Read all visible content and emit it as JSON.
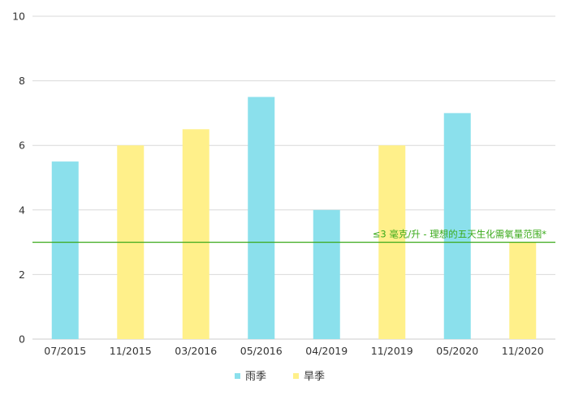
{
  "chart_data": {
    "type": "bar",
    "categories": [
      "07/2015",
      "11/2015",
      "03/2016",
      "05/2016",
      "04/2019",
      "11/2019",
      "05/2020",
      "11/2020"
    ],
    "values": [
      5.5,
      6,
      6.5,
      7.5,
      4,
      6,
      7,
      3
    ],
    "bar_series": [
      "雨季",
      "旱季",
      "旱季",
      "雨季",
      "雨季",
      "旱季",
      "雨季",
      "旱季"
    ],
    "series": [
      {
        "name": "雨季",
        "color": "#8be0ec"
      },
      {
        "name": "旱季",
        "color": "#fff08a"
      }
    ],
    "ylim": [
      0,
      10
    ],
    "yticks": [
      0,
      2,
      4,
      6,
      8,
      10
    ],
    "grid": true,
    "legend_position": "bottom",
    "reference_line": {
      "value": 3,
      "label": "≤3 毫克/升 - 理想的五天生化需氧量范围*",
      "color": "#3aaa1a"
    },
    "grid_color": "#d9d9d9",
    "axis_color": "#cccccc"
  }
}
